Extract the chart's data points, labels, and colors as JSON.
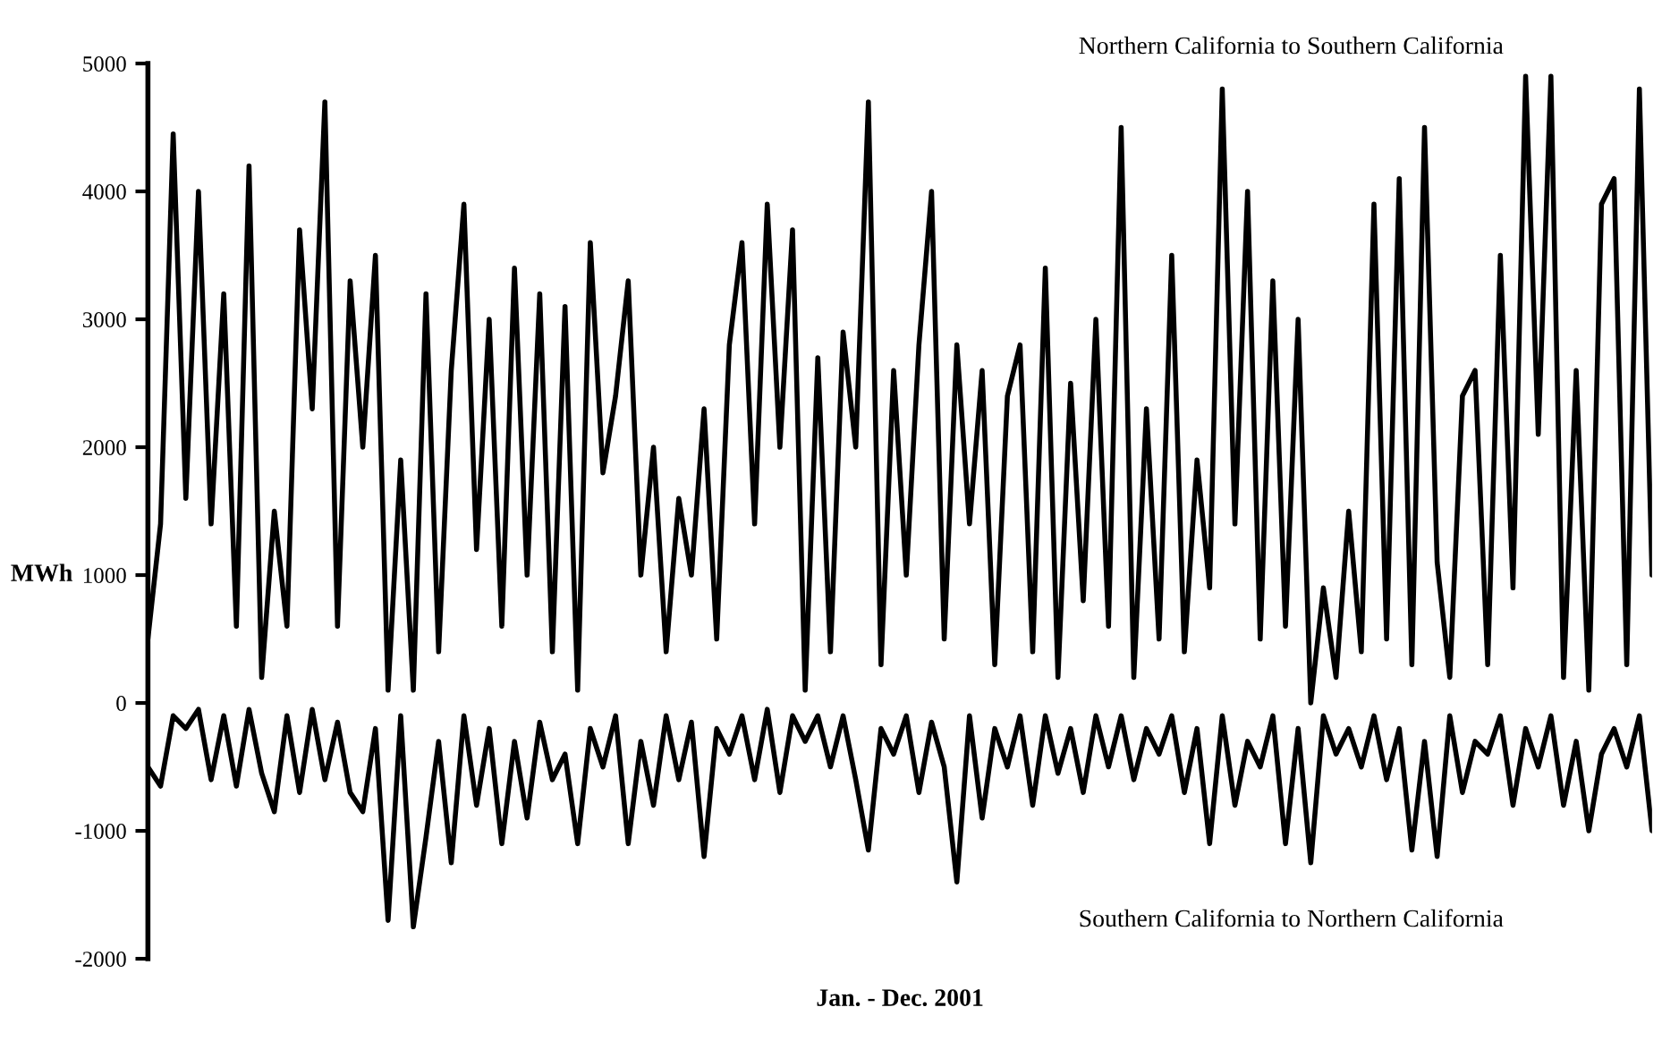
{
  "chart_data": {
    "type": "line",
    "xlabel": "Jan. - Dec. 2001",
    "ylabel": "MWh",
    "categories": [
      null,
      null,
      null,
      null,
      null,
      null,
      null,
      null,
      null,
      null,
      null,
      null,
      null,
      null,
      null,
      null,
      null,
      null,
      null,
      null,
      null,
      null,
      null,
      null,
      null,
      null,
      null,
      null,
      null,
      null,
      null,
      null,
      null,
      null,
      null,
      null,
      null,
      null,
      null,
      null,
      null,
      null,
      null,
      null,
      null,
      null,
      null,
      null,
      null,
      null,
      null,
      null,
      null,
      null,
      null,
      null,
      null,
      null,
      null,
      null,
      null,
      null,
      null,
      null,
      null,
      null,
      null,
      null,
      null,
      null,
      null,
      null,
      null,
      null,
      null,
      null,
      null,
      null,
      null,
      null,
      null,
      null,
      null,
      null,
      null,
      null,
      null,
      null,
      null,
      null,
      null,
      null,
      null,
      null,
      null,
      null,
      null,
      null,
      null,
      null,
      null,
      null,
      null,
      null,
      null,
      null,
      null,
      null,
      null,
      null,
      null,
      null,
      null,
      null,
      null,
      null,
      null,
      null,
      null,
      null
    ],
    "series": [
      {
        "color": "#000000",
        "values": [
          500,
          1400,
          4450,
          1600,
          4000,
          1400,
          3200,
          600,
          4200,
          200,
          1500,
          600,
          3700,
          2300,
          4700,
          600,
          3300,
          2000,
          3500,
          100,
          1900,
          100,
          3200,
          400,
          2600,
          3900,
          1200,
          3000,
          600,
          3400,
          1000,
          3200,
          400,
          3100,
          100,
          3600,
          1800,
          2400,
          3300,
          1000,
          2000,
          400,
          1600,
          1000,
          2300,
          500,
          2800,
          3600,
          1400,
          3900,
          2000,
          3700,
          100,
          2700,
          400,
          2900,
          2000,
          4700,
          300,
          2600,
          1000,
          2800,
          4000,
          500,
          2800,
          1400,
          2600,
          300,
          2400,
          2800,
          400,
          3400,
          200,
          2500,
          800,
          3000,
          600,
          4500,
          200,
          2300,
          500,
          3500,
          400,
          1900,
          900,
          4800,
          1400,
          4000,
          500,
          3300,
          600,
          3000,
          0,
          900,
          200,
          1500,
          400,
          3900,
          500,
          4100,
          300,
          4500,
          1100,
          200,
          2400,
          2600,
          300,
          3500,
          900,
          4900,
          2100,
          4900,
          200,
          2600,
          100,
          3900,
          4100,
          300,
          4800,
          1000
        ]
      },
      {
        "color": "#000000",
        "values": [
          -500,
          -650,
          -100,
          -200,
          -50,
          -600,
          -100,
          -650,
          -50,
          -550,
          -850,
          -100,
          -700,
          -50,
          -600,
          -150,
          -700,
          -850,
          -200,
          -1700,
          -100,
          -1750,
          -1050,
          -300,
          -1250,
          -100,
          -800,
          -200,
          -1100,
          -300,
          -900,
          -150,
          -600,
          -400,
          -1100,
          -200,
          -500,
          -100,
          -1100,
          -300,
          -800,
          -100,
          -600,
          -150,
          -1200,
          -200,
          -400,
          -100,
          -600,
          -50,
          -700,
          -100,
          -300,
          -100,
          -500,
          -100,
          -600,
          -1150,
          -200,
          -400,
          -100,
          -700,
          -150,
          -500,
          -1400,
          -100,
          -900,
          -200,
          -500,
          -100,
          -800,
          -100,
          -550,
          -200,
          -700,
          -100,
          -500,
          -100,
          -600,
          -200,
          -400,
          -100,
          -700,
          -200,
          -1100,
          -100,
          -800,
          -300,
          -500,
          -100,
          -1100,
          -200,
          -1250,
          -100,
          -400,
          -200,
          -500,
          -100,
          -600,
          -200,
          -1150,
          -300,
          -1200,
          -100,
          -700,
          -300,
          -400,
          -100,
          -800,
          -200,
          -500,
          -100,
          -800,
          -300,
          -1000,
          -400,
          -200,
          -500,
          -100,
          -1000
        ]
      }
    ],
    "ylim": [
      -2000,
      5000
    ],
    "yticks": [
      -2000,
      -1000,
      0,
      1000,
      2000,
      3000,
      4000,
      5000
    ],
    "tick_labels": "y",
    "grid": false,
    "annotations": [
      "Northern California to Southern California",
      "Southern California to Northern California"
    ]
  }
}
